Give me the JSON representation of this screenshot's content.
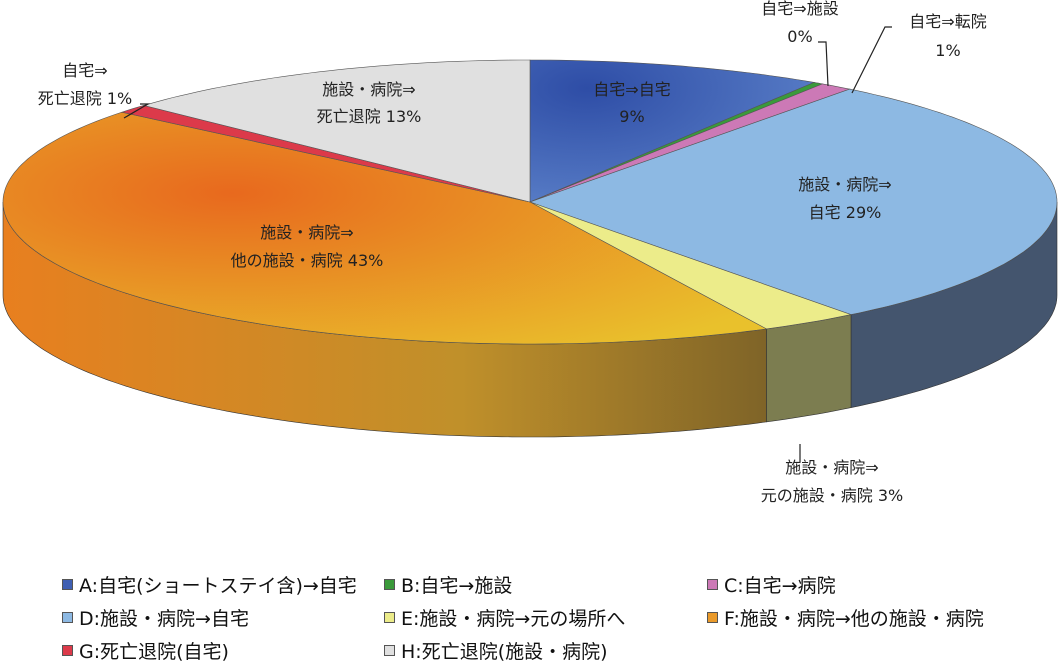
{
  "chart_data": {
    "type": "pie",
    "style": "3d",
    "slices": [
      {
        "key": "A",
        "value": 9,
        "color": "#3f5fb3",
        "side": "#2c417a",
        "label": [
          "自宅⇒自宅",
          "9%"
        ]
      },
      {
        "key": "B",
        "value": 0.3,
        "color": "#3a9a3a",
        "side": "#2b6d2b",
        "label": [
          "自宅⇒施設",
          "0%"
        ]
      },
      {
        "key": "C",
        "value": 1,
        "color": "#cc79b6",
        "side": "#8d5480",
        "label": [
          "自宅⇒転院",
          "1%"
        ]
      },
      {
        "key": "D",
        "value": 29,
        "color": "#8db9e3",
        "side": "#44556e",
        "label": [
          "施設・病院⇒",
          "自宅  29%"
        ]
      },
      {
        "key": "E",
        "value": 3,
        "color": "#ecec8a",
        "side": "#7c7d50",
        "label": [
          "施設・病院⇒",
          "元の施設・病院  3%"
        ]
      },
      {
        "key": "F",
        "value": 43,
        "color": "#ea9a2a",
        "side": "#a9722a",
        "label": [
          "施設・病院⇒",
          "他の施設・病院  43%"
        ]
      },
      {
        "key": "G",
        "value": 1,
        "color": "#dc3a4a",
        "side": "#9a2834",
        "label": [
          "自宅⇒",
          "死亡退院  1%"
        ]
      },
      {
        "key": "H",
        "value": 13,
        "color": "#e0e0e0",
        "side": "#9c9c9c",
        "label": [
          "施設・病院⇒",
          "死亡退院  13%"
        ]
      }
    ],
    "legend": [
      {
        "key": "A",
        "text": "A:自宅(ショートステイ含)→自宅",
        "color": "#3f5fb3"
      },
      {
        "key": "B",
        "text": "B:自宅→施設",
        "color": "#3a9a3a"
      },
      {
        "key": "C",
        "text": "C:自宅→病院",
        "color": "#cc79b6"
      },
      {
        "key": "D",
        "text": "D:施設・病院→自宅",
        "color": "#8db9e3"
      },
      {
        "key": "E",
        "text": "E:施設・病院→元の場所へ",
        "color": "#ecec8a"
      },
      {
        "key": "F",
        "text": "F:施設・病院→他の施設・病院",
        "color": "#ea9a2a"
      },
      {
        "key": "G",
        "text": "G:死亡退院(自宅)",
        "color": "#dc3a4a"
      },
      {
        "key": "H",
        "text": "H:死亡退院(施設・病院)",
        "color": "#e0e0e0"
      }
    ],
    "legend_position": "bottom"
  }
}
